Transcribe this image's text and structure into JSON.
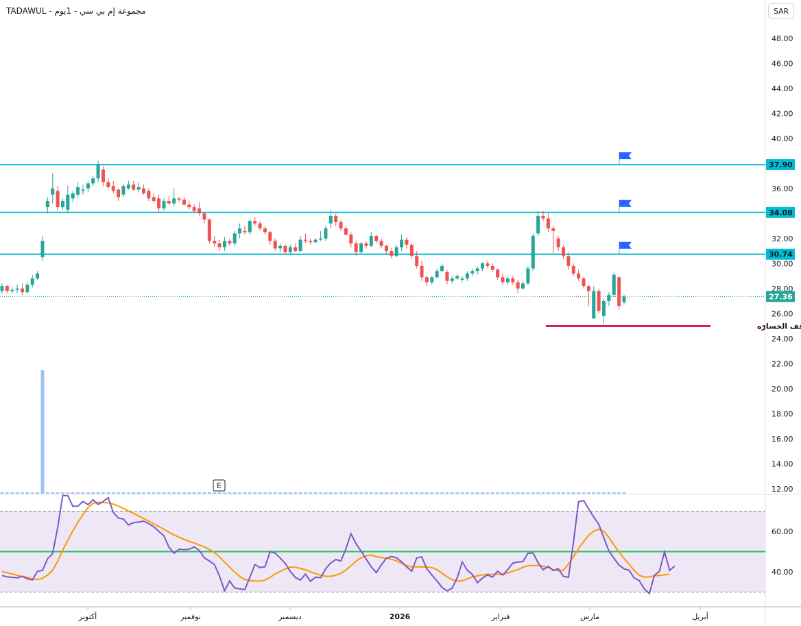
{
  "header": {
    "symbol_line": "TADAWUL - مجموعة إم بي سي - 1يوم"
  },
  "currency": "SAR",
  "colors": {
    "up": "#26a69a",
    "down": "#ef5350",
    "level_line": "#00bcd4",
    "stop_line": "#d81b60",
    "rsi": "#7e57c2",
    "rsi_ma": "#ff9800",
    "rsi_mid": "#22c55e",
    "rsi_band": "#ede7f6",
    "volume": "#90b4f5",
    "flag": "#2962ff"
  },
  "chart_data": [
    {
      "type": "candlestick",
      "title": "",
      "x_ticks": [
        "أكتوبر",
        "نوفمبر",
        "ديسمبر",
        "2026",
        "فبراير",
        "مارس",
        "أبريل"
      ],
      "y_ticks": [
        12,
        14,
        16,
        18,
        20,
        22,
        24,
        26,
        28,
        30,
        32,
        34,
        36,
        38,
        40,
        42,
        44,
        46,
        48
      ],
      "ylim": [
        11,
        49.5
      ],
      "current_price": 27.36,
      "levels": [
        37.9,
        34.08,
        30.74
      ],
      "level_labels": [
        "37.90",
        "34.08",
        "30.74"
      ],
      "current_price_label": "27.36",
      "stop_loss": {
        "value": 25.0,
        "label": "وقف الخساره"
      },
      "earnings_marker": "E",
      "candles": [
        [
          27.8,
          28.4,
          27.6,
          28.2
        ],
        [
          28.2,
          28.3,
          27.6,
          27.8
        ],
        [
          27.8,
          28.1,
          27.6,
          27.9
        ],
        [
          27.9,
          28.3,
          27.6,
          28.0
        ],
        [
          28.0,
          28.4,
          27.5,
          27.7
        ],
        [
          27.7,
          28.5,
          27.6,
          28.3
        ],
        [
          28.3,
          29.1,
          28.1,
          28.8
        ],
        [
          28.8,
          29.4,
          28.7,
          29.2
        ],
        [
          30.5,
          32.2,
          30.2,
          31.8
        ],
        [
          34.5,
          35.3,
          34.0,
          35.0
        ],
        [
          35.5,
          37.2,
          34.8,
          36.0
        ],
        [
          35.8,
          36.2,
          34.2,
          34.5
        ],
        [
          34.5,
          35.2,
          34.3,
          35.0
        ],
        [
          34.3,
          36.2,
          34.1,
          35.5
        ],
        [
          35.2,
          35.8,
          34.9,
          35.6
        ],
        [
          35.5,
          36.5,
          35.2,
          36.1
        ],
        [
          35.8,
          36.3,
          35.5,
          35.9
        ],
        [
          36.0,
          36.6,
          35.7,
          36.4
        ],
        [
          36.4,
          37.0,
          36.2,
          36.8
        ],
        [
          36.8,
          38.2,
          36.5,
          37.9
        ],
        [
          37.5,
          37.8,
          36.2,
          36.5
        ],
        [
          36.5,
          36.8,
          35.9,
          36.1
        ],
        [
          36.2,
          36.6,
          35.6,
          35.8
        ],
        [
          35.9,
          36.0,
          35.0,
          35.3
        ],
        [
          35.5,
          36.4,
          35.3,
          36.2
        ],
        [
          36.0,
          36.6,
          35.9,
          36.3
        ],
        [
          36.3,
          36.6,
          35.8,
          35.9
        ],
        [
          35.9,
          36.5,
          35.7,
          36.1
        ],
        [
          36.0,
          36.3,
          35.5,
          35.6
        ],
        [
          35.8,
          36.0,
          35.0,
          35.2
        ],
        [
          35.3,
          35.6,
          34.8,
          35.0
        ],
        [
          35.2,
          35.5,
          34.1,
          34.4
        ],
        [
          34.4,
          35.2,
          34.2,
          35.0
        ],
        [
          35.0,
          35.4,
          34.7,
          34.8
        ],
        [
          34.8,
          36.0,
          34.6,
          35.2
        ],
        [
          35.2,
          35.3,
          34.9,
          35.1
        ],
        [
          35.1,
          35.3,
          34.6,
          34.7
        ],
        [
          34.7,
          35.0,
          34.3,
          34.5
        ],
        [
          34.5,
          34.7,
          34.0,
          34.2
        ],
        [
          34.4,
          34.9,
          33.8,
          34.0
        ],
        [
          34.0,
          34.1,
          33.2,
          33.5
        ],
        [
          33.5,
          33.6,
          31.6,
          31.8
        ],
        [
          31.8,
          32.2,
          31.3,
          31.6
        ],
        [
          31.6,
          31.9,
          31.0,
          31.3
        ],
        [
          31.3,
          32.1,
          31.0,
          31.8
        ],
        [
          31.8,
          32.0,
          31.4,
          31.6
        ],
        [
          31.6,
          32.6,
          31.4,
          32.4
        ],
        [
          32.4,
          33.2,
          32.0,
          32.8
        ],
        [
          32.6,
          33.0,
          32.3,
          32.5
        ],
        [
          32.5,
          33.6,
          32.3,
          33.4
        ],
        [
          33.4,
          33.7,
          33.0,
          33.2
        ],
        [
          33.2,
          33.4,
          32.6,
          32.8
        ],
        [
          32.8,
          33.0,
          32.3,
          32.5
        ],
        [
          32.5,
          32.6,
          31.5,
          31.8
        ],
        [
          31.8,
          32.0,
          31.0,
          31.2
        ],
        [
          31.2,
          31.6,
          30.9,
          31.4
        ],
        [
          31.4,
          31.5,
          30.7,
          30.9
        ],
        [
          30.9,
          31.5,
          30.7,
          31.3
        ],
        [
          31.3,
          31.6,
          30.9,
          31.0
        ],
        [
          31.0,
          32.2,
          30.9,
          31.9
        ],
        [
          31.9,
          32.4,
          31.6,
          31.8
        ],
        [
          31.8,
          32.0,
          31.5,
          31.7
        ],
        [
          31.7,
          32.0,
          31.6,
          31.9
        ],
        [
          31.9,
          32.6,
          31.8,
          32.0
        ],
        [
          32.0,
          33.0,
          31.8,
          32.8
        ],
        [
          33.2,
          34.3,
          32.8,
          33.8
        ],
        [
          33.8,
          34.0,
          33.0,
          33.3
        ],
        [
          33.3,
          33.5,
          32.6,
          32.8
        ],
        [
          32.8,
          33.0,
          32.2,
          32.3
        ],
        [
          32.3,
          32.5,
          31.3,
          31.6
        ],
        [
          31.6,
          31.8,
          30.6,
          30.9
        ],
        [
          30.9,
          31.7,
          30.8,
          31.6
        ],
        [
          31.6,
          31.8,
          31.2,
          31.4
        ],
        [
          31.4,
          32.5,
          31.3,
          32.2
        ],
        [
          32.2,
          32.3,
          31.6,
          31.8
        ],
        [
          31.8,
          32.0,
          31.2,
          31.4
        ],
        [
          31.4,
          31.5,
          30.8,
          31.0
        ],
        [
          31.0,
          31.2,
          30.4,
          30.6
        ],
        [
          30.6,
          31.5,
          30.5,
          31.3
        ],
        [
          31.3,
          32.3,
          31.0,
          31.9
        ],
        [
          31.9,
          32.1,
          31.2,
          31.5
        ],
        [
          31.5,
          31.7,
          30.4,
          30.6
        ],
        [
          30.6,
          31.0,
          29.6,
          29.8
        ],
        [
          29.8,
          30.2,
          28.6,
          28.9
        ],
        [
          28.9,
          29.0,
          28.2,
          28.5
        ],
        [
          28.5,
          29.0,
          28.3,
          28.9
        ],
        [
          28.9,
          29.6,
          28.8,
          29.4
        ],
        [
          29.4,
          30.0,
          29.3,
          29.8
        ],
        [
          29.3,
          29.5,
          28.3,
          28.6
        ],
        [
          28.6,
          29.0,
          28.4,
          28.8
        ],
        [
          28.8,
          29.2,
          28.7,
          29.0
        ],
        [
          28.7,
          29.0,
          28.5,
          28.8
        ],
        [
          28.8,
          29.4,
          28.6,
          29.2
        ],
        [
          29.2,
          29.6,
          29.0,
          29.4
        ],
        [
          29.4,
          29.8,
          29.1,
          29.6
        ],
        [
          29.6,
          30.1,
          29.4,
          30.0
        ],
        [
          30.0,
          30.2,
          29.6,
          29.8
        ],
        [
          29.8,
          30.0,
          29.3,
          29.5
        ],
        [
          29.5,
          29.6,
          28.7,
          28.9
        ],
        [
          28.9,
          29.2,
          28.3,
          28.5
        ],
        [
          28.5,
          29.0,
          28.3,
          28.8
        ],
        [
          28.8,
          29.0,
          28.3,
          28.5
        ],
        [
          28.5,
          28.7,
          27.6,
          28.0
        ],
        [
          28.0,
          28.6,
          27.9,
          28.4
        ],
        [
          28.4,
          29.8,
          28.3,
          29.6
        ],
        [
          29.6,
          32.4,
          29.4,
          32.2
        ],
        [
          32.4,
          34.2,
          32.2,
          33.8
        ],
        [
          33.8,
          34.2,
          33.4,
          33.6
        ],
        [
          33.6,
          34.0,
          32.5,
          32.8
        ],
        [
          32.8,
          33.0,
          30.8,
          32.6
        ],
        [
          32.0,
          32.2,
          31.0,
          31.3
        ],
        [
          31.3,
          31.5,
          30.4,
          30.6
        ],
        [
          30.6,
          30.9,
          29.5,
          29.8
        ],
        [
          29.8,
          30.0,
          29.0,
          29.2
        ],
        [
          29.2,
          29.5,
          28.6,
          28.8
        ],
        [
          28.8,
          28.9,
          28.0,
          28.2
        ],
        [
          28.2,
          28.3,
          26.6,
          27.8
        ],
        [
          25.6,
          28.2,
          25.6,
          27.8
        ],
        [
          27.8,
          28.0,
          26.0,
          26.2
        ],
        [
          25.8,
          27.2,
          25.2,
          27.0
        ],
        [
          27.0,
          27.7,
          26.6,
          27.5
        ],
        [
          27.5,
          29.3,
          27.3,
          29.1
        ],
        [
          28.9,
          29.0,
          26.3,
          26.6
        ],
        [
          26.9,
          27.5,
          26.7,
          27.36
        ]
      ],
      "rsi": [
        38.2,
        37.5,
        37.3,
        37.0,
        37.8,
        36.5,
        36.0,
        40.2,
        40.7,
        46.5,
        49.0,
        61.8,
        77.8,
        77.6,
        72.4,
        72.5,
        74.8,
        73.2,
        75.6,
        73.3,
        74.8,
        76.6,
        69.4,
        66.6,
        66.1,
        63.2,
        64.3,
        64.6,
        65.1,
        63.8,
        62.3,
        60.0,
        57.8,
        52.2,
        49.2,
        51.2,
        50.9,
        51.2,
        52.3,
        50.6,
        46.9,
        45.4,
        43.6,
        37.9,
        30.6,
        35.5,
        32.0,
        31.6,
        31.2,
        37.3,
        43.6,
        42.1,
        42.5,
        49.9,
        49.3,
        46.8,
        44.2,
        40.2,
        37.2,
        35.9,
        38.9,
        35.3,
        37.4,
        37.1,
        41.5,
        44.4,
        46.1,
        45.4,
        51.4,
        58.8,
        53.9,
        50.2,
        46.3,
        42.5,
        39.6,
        43.4,
        46.7,
        47.6,
        46.9,
        45.0,
        42.5,
        40.3,
        46.9,
        47.4,
        41.5,
        38.4,
        35.5,
        32.3,
        30.6,
        31.9,
        37.1,
        44.9,
        40.8,
        38.7,
        34.6,
        36.9,
        38.5,
        37.4,
        40.3,
        38.4,
        41.1,
        44.3,
        44.8,
        45.1,
        49.2,
        49.3,
        44.5,
        41.0,
        42.7,
        40.6,
        41.6,
        37.8,
        37.3,
        54.8,
        74.6,
        75.3,
        71.1,
        67.1,
        63.5,
        56.8,
        50.3,
        46.7,
        43.3,
        41.5,
        40.8,
        37.0,
        35.7,
        31.6,
        29.3,
        38.2,
        40.3,
        49.9,
        40.7,
        42.8
      ],
      "rsi_ma": [
        40.1,
        39.6,
        39.0,
        38.3,
        37.7,
        37.3,
        36.5,
        36.2,
        36.8,
        38.4,
        40.7,
        45.2,
        50.7,
        55.7,
        60.2,
        64.5,
        68.3,
        71.8,
        73.9,
        74.4,
        74.2,
        74.1,
        73.5,
        72.5,
        71.4,
        70.1,
        68.9,
        67.7,
        66.4,
        65.1,
        63.7,
        62.4,
        61.0,
        59.6,
        58.2,
        57.1,
        56.0,
        55.1,
        54.2,
        53.3,
        52.3,
        51.1,
        49.6,
        47.4,
        44.8,
        42.3,
        39.9,
        37.7,
        36.2,
        35.7,
        35.5,
        35.4,
        35.9,
        37.3,
        39.0,
        40.2,
        41.4,
        42.4,
        42.3,
        41.7,
        41.0,
        40.0,
        39.2,
        38.3,
        37.8,
        37.8,
        38.3,
        39.3,
        40.9,
        43.0,
        45.3,
        47.0,
        47.9,
        48.3,
        47.6,
        47.1,
        46.7,
        46.2,
        45.4,
        44.2,
        43.1,
        42.4,
        42.5,
        42.4,
        42.3,
        42.1,
        41.1,
        39.3,
        37.6,
        36.1,
        35.4,
        35.6,
        36.5,
        37.5,
        38.0,
        38.4,
        38.8,
        38.7,
        38.7,
        38.8,
        39.5,
        40.3,
        41.1,
        42.2,
        43.0,
        43.2,
        43.1,
        42.8,
        42.1,
        41.1,
        40.5,
        40.8,
        43.8,
        47.5,
        51.4,
        55.0,
        58.1,
        60.1,
        61.1,
        60.0,
        57.0,
        53.3,
        49.8,
        46.6,
        43.7,
        40.7,
        38.3,
        37.4,
        37.5,
        38.0,
        38.2,
        38.5,
        38.8
      ],
      "rsi_levels": {
        "upper": 70,
        "middle": 50,
        "lower": 30
      },
      "rsi_ticks": [
        40,
        60
      ],
      "rsi_tick_labels": [
        "40.00",
        "60.00"
      ],
      "volume_spike_index": 8
    }
  ]
}
